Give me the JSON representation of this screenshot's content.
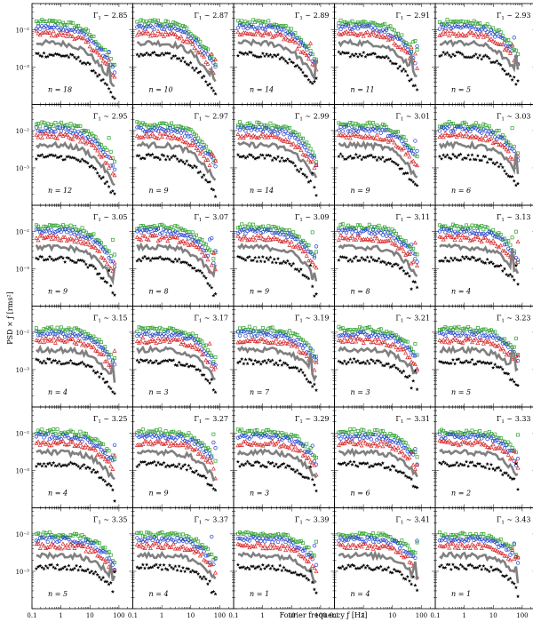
{
  "figure": {
    "ylabel": "PSD × ƒ [rms²]",
    "xlabel": "Fourier frequency ƒ [Hz]",
    "gamma_prefix": "Γ",
    "gamma_sub": "1",
    "gamma_op": " ∼ ",
    "n_prefix": "n = "
  },
  "chart_data": {
    "type": "scatter",
    "layout": "grid",
    "rows": 6,
    "cols": 5,
    "x_scale": "log",
    "y_scale": "log",
    "xlim": [
      0.1,
      300
    ],
    "ylim": [
      0.0001,
      0.05
    ],
    "x_ticks": [
      0.1,
      1,
      10,
      100
    ],
    "x_tick_labels": [
      "0.1",
      "1",
      "10",
      "100"
    ],
    "y_ticks": [
      0.01,
      0.001
    ],
    "y_tick_labels": [
      "10⁻²",
      "10⁻³"
    ],
    "grid": false,
    "series_styles": [
      {
        "marker": "square",
        "color": "#2ca02c"
      },
      {
        "marker": "circle",
        "color": "#1f3fd0"
      },
      {
        "marker": "triangle",
        "color": "#d62728"
      },
      {
        "marker": "thick-line",
        "color": "#808080"
      },
      {
        "marker": "star",
        "color": "#000000"
      }
    ],
    "panels": [
      {
        "gamma": "2.85",
        "n": "18"
      },
      {
        "gamma": "2.87",
        "n": "10"
      },
      {
        "gamma": "2.89",
        "n": "14"
      },
      {
        "gamma": "2.91",
        "n": "11"
      },
      {
        "gamma": "2.93",
        "n": "5"
      },
      {
        "gamma": "2.95",
        "n": "12"
      },
      {
        "gamma": "2.97",
        "n": "9"
      },
      {
        "gamma": "2.99",
        "n": "14"
      },
      {
        "gamma": "3.01",
        "n": "9"
      },
      {
        "gamma": "3.03",
        "n": "6"
      },
      {
        "gamma": "3.05",
        "n": "9"
      },
      {
        "gamma": "3.07",
        "n": "8"
      },
      {
        "gamma": "3.09",
        "n": "9"
      },
      {
        "gamma": "3.11",
        "n": "8"
      },
      {
        "gamma": "3.13",
        "n": "4"
      },
      {
        "gamma": "3.15",
        "n": "4"
      },
      {
        "gamma": "3.17",
        "n": "3"
      },
      {
        "gamma": "3.19",
        "n": "7"
      },
      {
        "gamma": "3.21",
        "n": "3"
      },
      {
        "gamma": "3.23",
        "n": "5"
      },
      {
        "gamma": "3.25",
        "n": "4"
      },
      {
        "gamma": "3.27",
        "n": "9"
      },
      {
        "gamma": "3.29",
        "n": "3"
      },
      {
        "gamma": "3.31",
        "n": "6"
      },
      {
        "gamma": "3.33",
        "n": "2"
      },
      {
        "gamma": "3.35",
        "n": "5"
      },
      {
        "gamma": "3.37",
        "n": "4"
      },
      {
        "gamma": "3.39",
        "n": "1"
      },
      {
        "gamma": "3.41",
        "n": "4"
      },
      {
        "gamma": "3.43",
        "n": "1"
      }
    ]
  }
}
